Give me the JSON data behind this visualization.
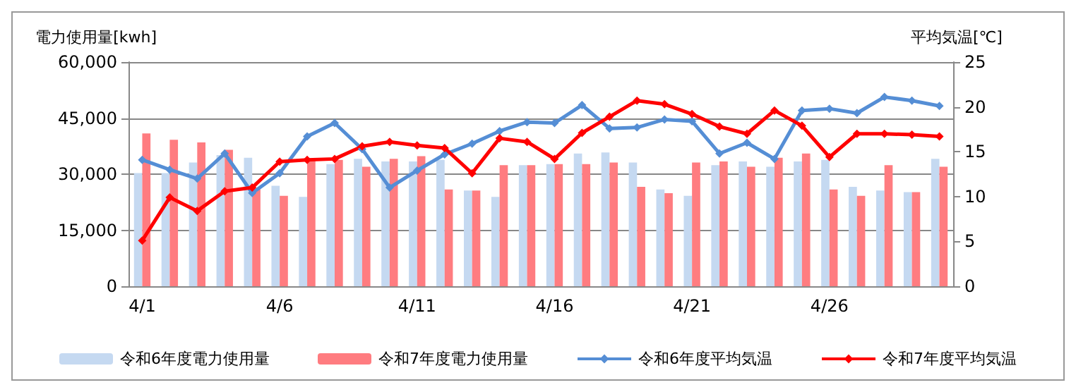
{
  "chart_data": {
    "type": "bar",
    "ylabel": "電力使用量[kwh]",
    "y2label": "平均気温[℃]",
    "categories": [
      "4/1",
      null,
      null,
      null,
      null,
      "4/6",
      null,
      null,
      null,
      null,
      "4/11",
      null,
      null,
      null,
      null,
      "4/16",
      null,
      null,
      null,
      null,
      "4/21",
      null,
      null,
      null,
      null,
      "4/26",
      null,
      null,
      null,
      null
    ],
    "series": [
      {
        "name": "令和6年度電力使用量",
        "color": "#c5d9f1",
        "values": [
          30300,
          30300,
          33100,
          35100,
          34400,
          26900,
          23900,
          32700,
          34100,
          33400,
          33400,
          33800,
          25600,
          23900,
          32400,
          32700,
          35500,
          35800,
          33100,
          25900,
          24200,
          32400,
          33400,
          32000,
          33400,
          33800,
          26600,
          25600,
          25200,
          34100
        ]
      },
      {
        "name": "令和7年度電力使用量",
        "color": "#ff7c80",
        "values": [
          40900,
          39200,
          38500,
          36500,
          26000,
          24200,
          33800,
          33800,
          32000,
          34100,
          34800,
          25900,
          25600,
          32400,
          32400,
          32700,
          32700,
          33100,
          26600,
          24900,
          33100,
          33400,
          32000,
          34400,
          35500,
          25900,
          24200,
          32400,
          25200,
          32000
        ]
      },
      {
        "name": "令和6年度平均気温",
        "type": "line",
        "axis": "y2",
        "color": "#558ed5",
        "values": [
          14.1,
          13.0,
          12.0,
          14.8,
          10.4,
          12.6,
          16.7,
          18.2,
          15.3,
          11.0,
          12.9,
          14.7,
          15.9,
          17.3,
          18.3,
          18.2,
          20.2,
          17.6,
          17.7,
          18.6,
          18.4,
          14.8,
          16.0,
          14.2,
          19.6,
          19.8,
          19.3,
          21.1,
          20.7,
          20.1
        ]
      },
      {
        "name": "令和7年度平均気温",
        "type": "line",
        "axis": "y2",
        "color": "#ff0000",
        "values": [
          5.1,
          9.9,
          8.4,
          10.6,
          11.0,
          13.9,
          14.1,
          14.2,
          15.6,
          16.1,
          15.7,
          15.4,
          12.6,
          16.5,
          16.1,
          14.2,
          17.1,
          18.9,
          20.7,
          20.3,
          19.2,
          17.8,
          17.0,
          19.6,
          17.9,
          14.4,
          17.0,
          17.0,
          16.9,
          16.7
        ]
      }
    ],
    "ylim": [
      0,
      60000
    ],
    "yticks": [
      0,
      {
        "value": 15000,
        "label": "15,000"
      },
      {
        "value": 30000,
        "label": "30,000"
      },
      {
        "value": 45000,
        "label": "45,000"
      },
      {
        "value": 60000,
        "label": "60,000"
      }
    ],
    "y2lim": [
      0,
      25
    ],
    "y2ticks": [
      0,
      5,
      10,
      15,
      20,
      25
    ],
    "grid": "y",
    "legend": "bottom",
    "marker": "diamond",
    "line_style": "solid"
  }
}
